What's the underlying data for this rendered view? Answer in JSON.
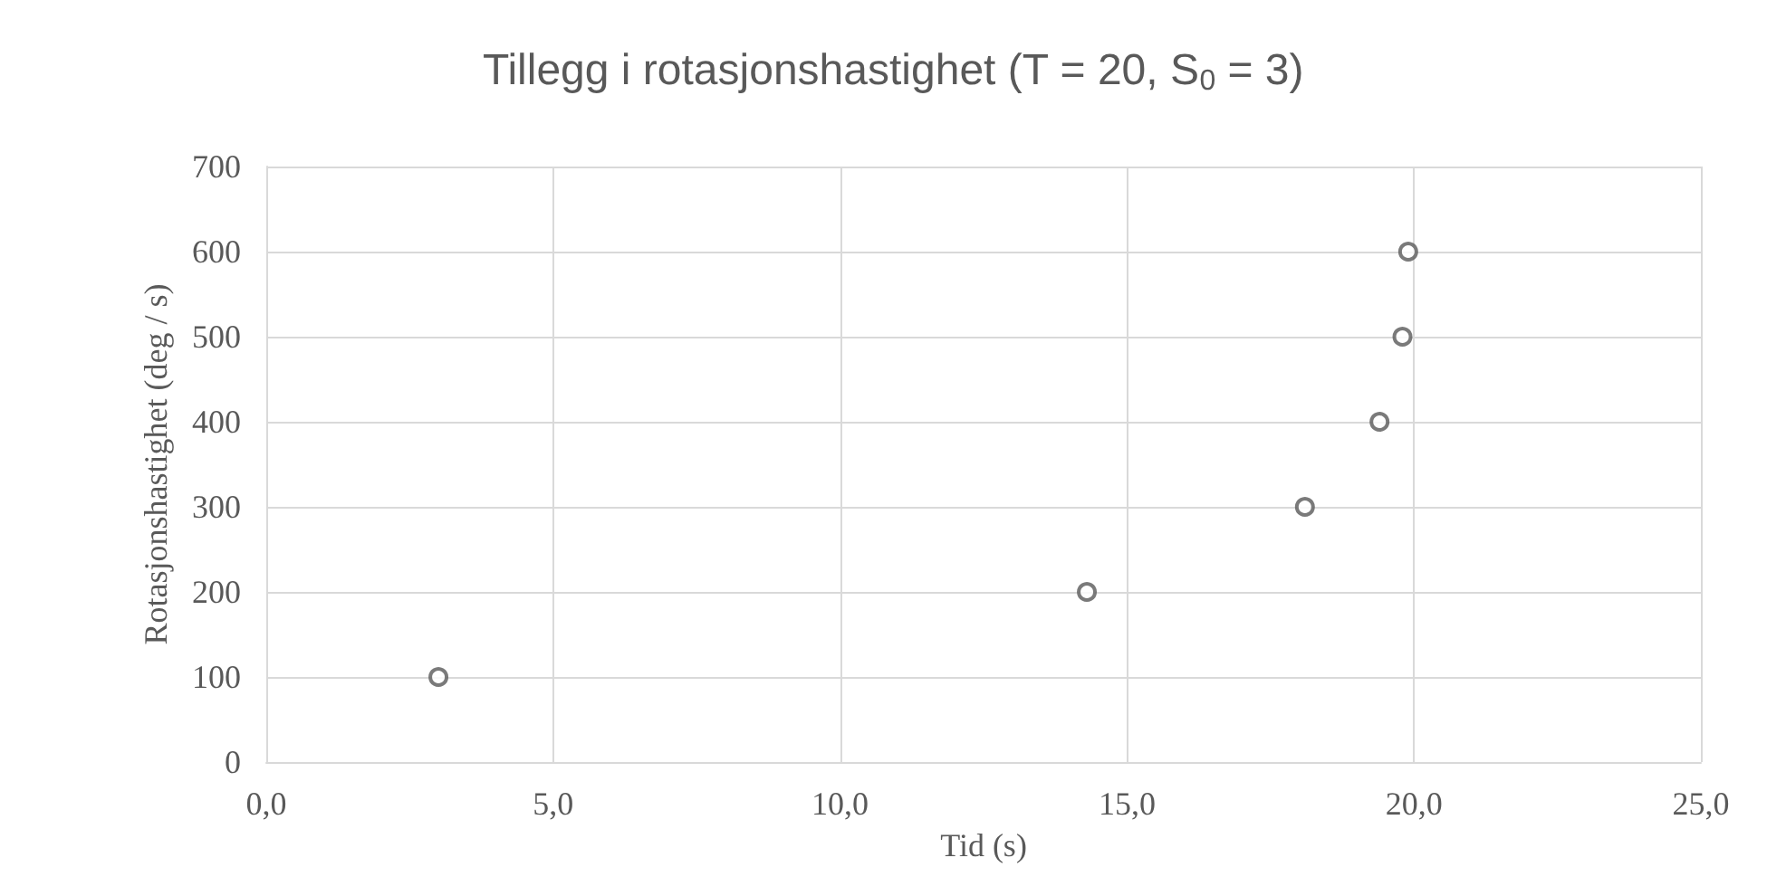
{
  "chart_data": {
    "type": "scatter",
    "title": "Tillegg i rotasjonshastighet (T = 20, S$_{0}$ = 3)",
    "xlabel": "Tid (s)",
    "ylabel": "Rotasjonshastighet (deg / s)",
    "x": [
      3.0,
      14.3,
      18.1,
      19.4,
      19.8,
      19.9
    ],
    "series": [
      {
        "color": "#595959",
        "values": [
          100,
          200,
          300,
          400,
          500,
          600
        ]
      }
    ],
    "xlim": [
      0,
      25
    ],
    "xticks": [
      {
        "value": 0,
        "label": "0,0"
      },
      {
        "value": 5,
        "label": "5,0"
      },
      {
        "value": 10,
        "label": "10,0"
      },
      {
        "value": 15,
        "label": "15,0"
      },
      {
        "value": 20,
        "label": "20,0"
      },
      {
        "value": 25,
        "label": "25,0"
      }
    ],
    "ylim": [
      0,
      700
    ],
    "yticks": [
      0,
      100,
      200,
      300,
      400,
      500,
      600,
      700
    ],
    "grid": true,
    "marker": "circle"
  }
}
